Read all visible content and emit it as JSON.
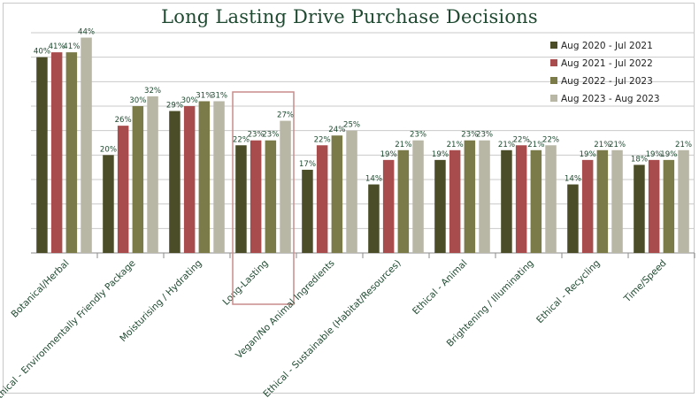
{
  "title": "Long Lasting Drive Purchase Decisions",
  "colors": {
    "title": "#1f4a31",
    "grid": "#c9c9c9",
    "axis": "#8a8a8a",
    "highlight_box": "#c98c8c"
  },
  "chart_data": {
    "type": "bar",
    "title": "Long Lasting Drive Purchase Decisions",
    "xlabel": "",
    "ylabel": "",
    "ylim": [
      0,
      45
    ],
    "grid": true,
    "legend_position": "top-right",
    "categories": [
      "Botanical/Herbal",
      "Ethical - Environmentally Friendly Package",
      "Moisturising / Hydrating",
      "Long-Lasting",
      "Vegan/No Animal Ingredients",
      "Ethical - Sustainable (Habitat/Resources)",
      "Ethical - Animal",
      "Brightening / Illuminating",
      "Ethical - Recycling",
      "Time/Speed"
    ],
    "highlighted_category": "Long-Lasting",
    "series": [
      {
        "name": "Aug 2020 - Jul 2021",
        "color": "#4a4d27",
        "values": [
          40,
          20,
          29,
          22,
          17,
          14,
          19,
          21,
          14,
          18
        ],
        "labels": [
          "40%",
          "20%",
          "29%",
          "22%",
          "17%",
          "14%",
          "19%",
          "21%",
          "14%",
          "18%"
        ]
      },
      {
        "name": "Aug 2021 - Jul 2022",
        "color": "#a94c4d",
        "values": [
          41,
          26,
          30,
          23,
          22,
          19,
          21,
          22,
          19,
          19
        ],
        "labels": [
          "41%",
          "26%",
          "30%",
          "23%",
          "22%",
          "19%",
          "21%",
          "22%",
          "19%",
          "19%"
        ]
      },
      {
        "name": "Aug 2022 - Jul 2023",
        "color": "#7b7b4a",
        "values": [
          41,
          30,
          31,
          23,
          24,
          21,
          23,
          21,
          21,
          19
        ],
        "labels": [
          "41%",
          "30%",
          "31%",
          "23%",
          "24%",
          "21%",
          "23%",
          "21%",
          "21%",
          "19%"
        ]
      },
      {
        "name": "Aug 2023 - Aug 2023",
        "color": "#b8b7a6",
        "values": [
          44,
          32,
          31,
          27,
          25,
          23,
          23,
          22,
          21,
          21
        ],
        "labels": [
          "44%",
          "32%",
          "31%",
          "27%",
          "25%",
          "23%",
          "23%",
          "22%",
          "21%",
          "21%"
        ]
      }
    ]
  }
}
